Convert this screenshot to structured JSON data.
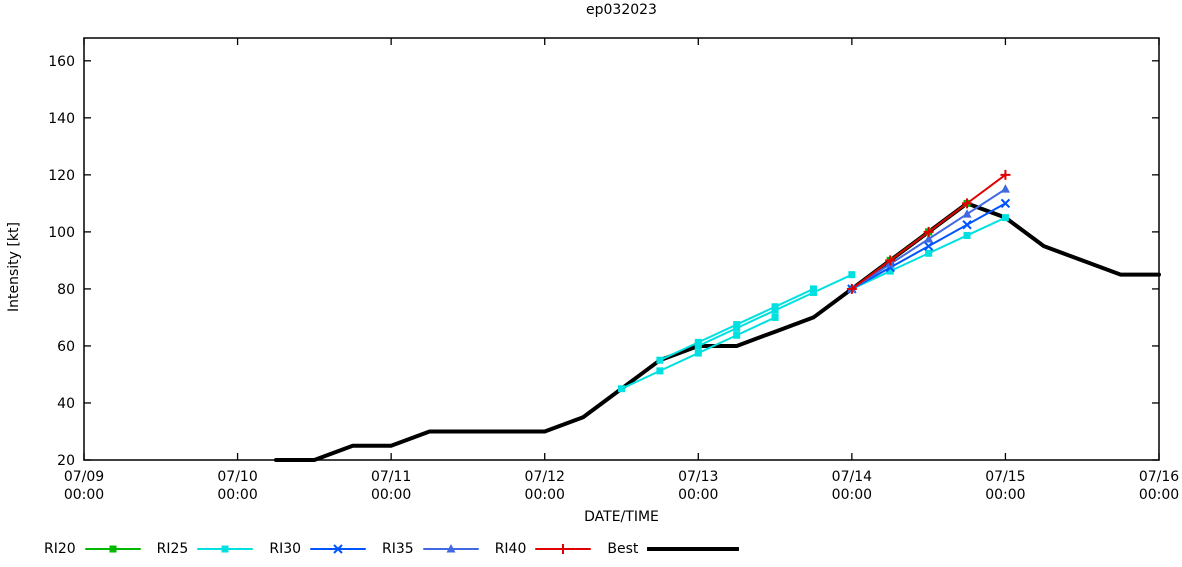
{
  "chart_data": {
    "type": "line",
    "title": "ep032023",
    "xlabel": "DATE/TIME",
    "ylabel": "Intensity [kt]",
    "x_unit": "hours since 07/09 00:00",
    "xlim": [
      0,
      168
    ],
    "ylim": [
      20,
      168
    ],
    "grid": false,
    "legend_position": "bottom-left-outside",
    "x_ticks": [
      {
        "hour": 0,
        "line1": "07/09",
        "line2": "00:00"
      },
      {
        "hour": 24,
        "line1": "07/10",
        "line2": "00:00"
      },
      {
        "hour": 48,
        "line1": "07/11",
        "line2": "00:00"
      },
      {
        "hour": 72,
        "line1": "07/12",
        "line2": "00:00"
      },
      {
        "hour": 96,
        "line1": "07/13",
        "line2": "00:00"
      },
      {
        "hour": 120,
        "line1": "07/14",
        "line2": "00:00"
      },
      {
        "hour": 144,
        "line1": "07/15",
        "line2": "00:00"
      },
      {
        "hour": 168,
        "line1": "07/16",
        "line2": "00:00"
      }
    ],
    "y_ticks": [
      20,
      40,
      60,
      80,
      100,
      120,
      140,
      160
    ],
    "series": [
      {
        "name": "RI20",
        "color": "#00b800",
        "marker": "square",
        "width": 2,
        "z": 1,
        "lines": [
          [
            [
              120,
              80
            ],
            [
              126,
              90
            ],
            [
              132,
              100
            ]
          ],
          [
            [
              126,
              90
            ],
            [
              132,
              100
            ],
            [
              138,
              110
            ]
          ]
        ]
      },
      {
        "name": "RI25",
        "color": "#00e0e0",
        "marker": "square",
        "width": 2,
        "z": 2,
        "lines": [
          [
            [
              84,
              45
            ],
            [
              90,
              51.25
            ],
            [
              96,
              57.5
            ],
            [
              102,
              63.75
            ],
            [
              108,
              70
            ]
          ],
          [
            [
              90,
              55
            ],
            [
              96,
              61.25
            ],
            [
              102,
              67.5
            ],
            [
              108,
              73.75
            ],
            [
              114,
              80
            ]
          ],
          [
            [
              96,
              60
            ],
            [
              102,
              66.25
            ],
            [
              108,
              72.5
            ],
            [
              114,
              78.75
            ],
            [
              120,
              85
            ]
          ],
          [
            [
              120,
              80
            ],
            [
              126,
              86.25
            ],
            [
              132,
              92.5
            ],
            [
              138,
              98.75
            ],
            [
              144,
              105
            ]
          ]
        ]
      },
      {
        "name": "RI30",
        "color": "#0055ff",
        "marker": "x",
        "width": 2,
        "z": 3,
        "lines": [
          [
            [
              120,
              80
            ],
            [
              126,
              87.5
            ],
            [
              132,
              95
            ],
            [
              138,
              102.5
            ],
            [
              144,
              110
            ]
          ]
        ]
      },
      {
        "name": "RI35",
        "color": "#4169e1",
        "marker": "triangle",
        "width": 2,
        "z": 4,
        "lines": [
          [
            [
              120,
              80
            ],
            [
              126,
              88.75
            ],
            [
              132,
              97.5
            ],
            [
              138,
              106.25
            ],
            [
              144,
              115
            ]
          ]
        ]
      },
      {
        "name": "RI40",
        "color": "#e00000",
        "marker": "plus",
        "width": 2,
        "z": 5,
        "lines": [
          [
            [
              120,
              80
            ],
            [
              126,
              90
            ],
            [
              132,
              100
            ],
            [
              138,
              110
            ],
            [
              144,
              120
            ]
          ]
        ]
      },
      {
        "name": "Best",
        "color": "#000000",
        "marker": "none",
        "width": 4,
        "z": 0,
        "lines": [
          [
            [
              30,
              20
            ],
            [
              36,
              20
            ],
            [
              42,
              25
            ],
            [
              48,
              25
            ],
            [
              54,
              30
            ],
            [
              60,
              30
            ],
            [
              66,
              30
            ],
            [
              72,
              30
            ],
            [
              78,
              35
            ],
            [
              84,
              45
            ],
            [
              90,
              55
            ],
            [
              96,
              60
            ],
            [
              102,
              60
            ],
            [
              108,
              65
            ],
            [
              114,
              70
            ],
            [
              120,
              80
            ],
            [
              126,
              90
            ],
            [
              132,
              100
            ],
            [
              138,
              110
            ],
            [
              144,
              105
            ],
            [
              150,
              95
            ],
            [
              156,
              90
            ],
            [
              162,
              85
            ],
            [
              168,
              85
            ]
          ]
        ]
      }
    ]
  }
}
